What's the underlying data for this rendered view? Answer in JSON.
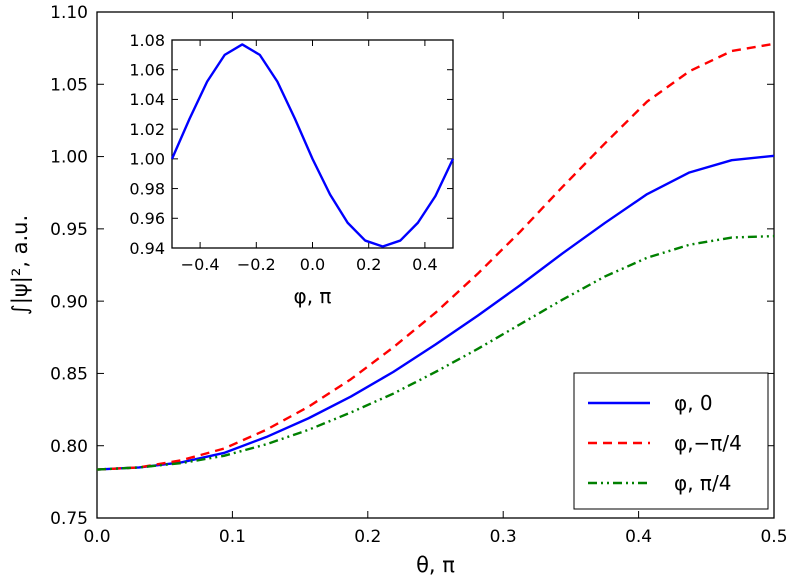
{
  "chart_data": [
    {
      "id": "main",
      "type": "line",
      "title": "",
      "xlabel": "θ, π",
      "ylabel": "∫|ψ|², a.u.",
      "xlim": [
        0.0,
        0.5
      ],
      "ylim": [
        0.75,
        1.1
      ],
      "xticks": [
        0.0,
        0.1,
        0.2,
        0.3,
        0.4,
        0.5
      ],
      "xtick_labels": [
        "0.0",
        "0.1",
        "0.2",
        "0.3",
        "0.4",
        "0.5"
      ],
      "yticks": [
        0.75,
        0.8,
        0.85,
        0.9,
        0.95,
        1.0,
        1.05,
        1.1
      ],
      "ytick_labels": [
        "0.75",
        "0.80",
        "0.85",
        "0.90",
        "0.95",
        "1.00",
        "1.05",
        "1.10"
      ],
      "grid": false,
      "legend_position": "bottom-right",
      "x": [
        0.0,
        0.03125,
        0.0625,
        0.09375,
        0.125,
        0.15625,
        0.1875,
        0.21875,
        0.25,
        0.28125,
        0.3125,
        0.34375,
        0.375,
        0.40625,
        0.4375,
        0.46875,
        0.5
      ],
      "series": [
        {
          "name": "φ, 0",
          "color": "#0000ff",
          "style": "solid",
          "values": [
            0.7835,
            0.785,
            0.7885,
            0.795,
            0.806,
            0.819,
            0.834,
            0.851,
            0.87,
            0.89,
            0.911,
            0.933,
            0.954,
            0.974,
            0.989,
            0.9975,
            1.0005
          ]
        },
        {
          "name": "φ,−π/4",
          "color": "#ff0000",
          "style": "dashed",
          "values": [
            0.7835,
            0.785,
            0.79,
            0.798,
            0.811,
            0.827,
            0.846,
            0.868,
            0.892,
            0.919,
            0.948,
            0.979,
            1.009,
            1.038,
            1.059,
            1.073,
            1.078
          ]
        },
        {
          "name": "φ, π/4",
          "color": "#008000",
          "style": "dashdot",
          "values": [
            0.7835,
            0.785,
            0.788,
            0.793,
            0.801,
            0.811,
            0.823,
            0.836,
            0.851,
            0.867,
            0.884,
            0.901,
            0.917,
            0.93,
            0.939,
            0.944,
            0.945
          ]
        }
      ]
    },
    {
      "id": "inset",
      "type": "line",
      "title": "",
      "xlabel": "φ, π",
      "ylabel": "",
      "xlim": [
        -0.5,
        0.5
      ],
      "ylim": [
        0.94,
        1.08
      ],
      "xticks": [
        -0.4,
        -0.2,
        0.0,
        0.2,
        0.4
      ],
      "xtick_labels": [
        "−0.4",
        "−0.2",
        "0.0",
        "0.2",
        "0.4"
      ],
      "yticks": [
        0.94,
        0.96,
        0.98,
        1.0,
        1.02,
        1.04,
        1.06,
        1.08
      ],
      "ytick_labels": [
        "0.94",
        "0.96",
        "0.98",
        "1.00",
        "1.02",
        "1.04",
        "1.06",
        "1.08"
      ],
      "grid": false,
      "x": [
        -0.5,
        -0.4375,
        -0.375,
        -0.3125,
        -0.25,
        -0.1875,
        -0.125,
        -0.0625,
        0.0,
        0.0625,
        0.125,
        0.1875,
        0.25,
        0.3125,
        0.375,
        0.4375,
        0.5
      ],
      "series": [
        {
          "name": "",
          "color": "#0000ff",
          "style": "solid",
          "values": [
            1.0,
            1.027,
            1.052,
            1.07,
            1.077,
            1.07,
            1.052,
            1.027,
            1.0,
            0.976,
            0.957,
            0.945,
            0.941,
            0.945,
            0.957,
            0.975,
            1.0
          ]
        }
      ]
    }
  ]
}
